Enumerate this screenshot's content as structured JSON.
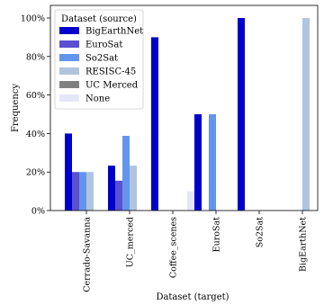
{
  "chart_data": {
    "type": "bar",
    "xlabel": "Dataset (target)",
    "ylabel": "Frequency",
    "ylim": [
      0,
      100
    ],
    "yticks": [
      0,
      20,
      40,
      60,
      80,
      100
    ],
    "ytick_labels": [
      "0%",
      "20%",
      "40%",
      "60%",
      "80%",
      "100%"
    ],
    "categories": [
      "Cerrado-Savanna",
      "UC_merced",
      "Coffee_scenes",
      "EuroSat",
      "So2Sat",
      "BigEarthNet"
    ],
    "legend": {
      "title": "Dataset (source)",
      "placement": "top-left"
    },
    "series": [
      {
        "name": "BigEarthNet",
        "color": "#0000cc",
        "values": [
          40,
          23.3,
          90,
          50,
          100,
          0
        ]
      },
      {
        "name": "EuroSat",
        "color": "#5a50d0",
        "values": [
          20,
          15.5,
          0,
          0,
          0,
          0
        ]
      },
      {
        "name": "So2Sat",
        "color": "#6495ed",
        "values": [
          20,
          38.8,
          0,
          50,
          0,
          0
        ]
      },
      {
        "name": "RESISC-45",
        "color": "#b0c4de",
        "values": [
          20,
          23.3,
          0,
          0,
          0,
          100
        ]
      },
      {
        "name": "UC Merced",
        "color": "#808080",
        "values": [
          0,
          0,
          0,
          0,
          0,
          0
        ]
      },
      {
        "name": "None",
        "color": "#e6e6fa",
        "values": [
          0,
          0,
          10,
          0,
          0,
          0
        ]
      }
    ]
  }
}
